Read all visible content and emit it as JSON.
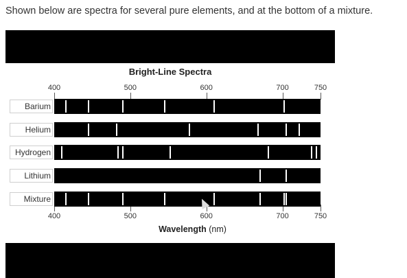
{
  "question": {
    "text": "Shown below are spectra for several pure elements, and at the bottom of a mixture."
  },
  "figure": {
    "title": "Bright-Line Spectra",
    "axis": {
      "title": "Wavelength",
      "unit": "(nm)",
      "ticks": [
        "400",
        "500",
        "600",
        "700",
        "750"
      ]
    },
    "spectra": [
      {
        "label": "Barium",
        "lines_nm": [
          415,
          445,
          490,
          545,
          610,
          702
        ]
      },
      {
        "label": "Helium",
        "lines_nm": [
          445,
          482,
          578,
          668,
          705,
          722
        ]
      },
      {
        "label": "Hydrogen",
        "lines_nm": [
          410,
          484,
          490,
          552,
          681,
          738,
          745
        ]
      },
      {
        "label": "Lithium",
        "lines_nm": [
          671,
          705
        ]
      },
      {
        "label": "Mixture",
        "lines_nm": [
          415,
          445,
          490,
          545,
          610,
          671,
          702,
          705
        ]
      }
    ],
    "colors": {
      "bar": "#000000",
      "line": "#ffffff"
    }
  }
}
